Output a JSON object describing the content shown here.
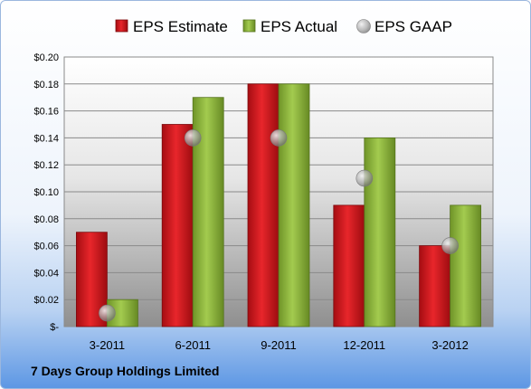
{
  "company": "7 Days Group Holdings Limited",
  "chart_data": {
    "type": "bar",
    "categories": [
      "3-2011",
      "6-2011",
      "9-2011",
      "12-2011",
      "3-2012"
    ],
    "series": [
      {
        "name": "EPS Estimate",
        "type": "bar",
        "color": "#d0161c",
        "values": [
          0.07,
          0.15,
          0.18,
          0.09,
          0.06
        ]
      },
      {
        "name": "EPS Actual",
        "type": "bar",
        "color": "#8cb53a",
        "values": [
          0.02,
          0.17,
          0.18,
          0.14,
          0.09
        ]
      },
      {
        "name": "EPS GAAP",
        "type": "scatter",
        "color": "#b8b8b8",
        "values": [
          0.01,
          0.14,
          0.14,
          0.11,
          0.06
        ]
      }
    ],
    "ylim": [
      0,
      0.2
    ],
    "yticks": [
      0,
      0.02,
      0.04,
      0.06,
      0.08,
      0.1,
      0.12,
      0.14,
      0.16,
      0.18,
      0.2
    ],
    "ytick_labels": [
      "$-",
      "$0.02",
      "$0.04",
      "$0.06",
      "$0.08",
      "$0.10",
      "$0.12",
      "$0.14",
      "$0.16",
      "$0.18",
      "$0.20"
    ],
    "grid": true,
    "legend": "top"
  }
}
